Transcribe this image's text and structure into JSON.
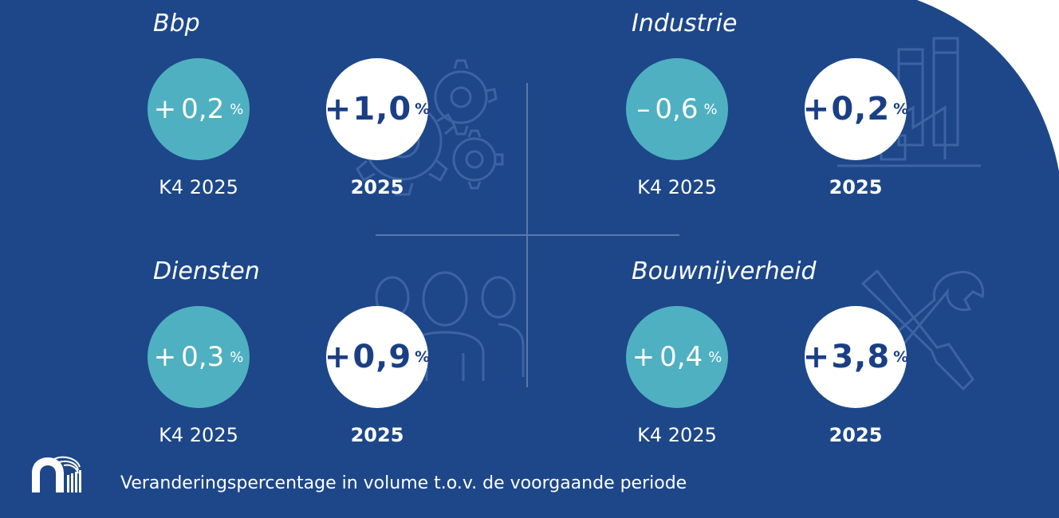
{
  "colors": {
    "background": "#1d4789",
    "accent_teal": "#4fb0c1",
    "value_navy": "#1b3f84",
    "line": "#5a78aa"
  },
  "panels": [
    {
      "title": "Bbp",
      "quarter": {
        "sign": "+",
        "value": "0,2",
        "unit": "%",
        "label": "K4 2025"
      },
      "year": {
        "sign": "+",
        "value": "1,0",
        "unit": "%",
        "label": "2025"
      },
      "icon": "gears-icon"
    },
    {
      "title": "Industrie",
      "quarter": {
        "sign": "–",
        "value": "0,6",
        "unit": "%",
        "label": "K4 2025"
      },
      "year": {
        "sign": "+",
        "value": "0,2",
        "unit": "%",
        "label": "2025"
      },
      "icon": "factory-icon"
    },
    {
      "title": "Diensten",
      "quarter": {
        "sign": "+",
        "value": "0,3",
        "unit": "%",
        "label": "K4 2025"
      },
      "year": {
        "sign": "+",
        "value": "0,9",
        "unit": "%",
        "label": "2025"
      },
      "icon": "people-icon"
    },
    {
      "title": "Bouwnijverheid",
      "quarter": {
        "sign": "+",
        "value": "0,4",
        "unit": "%",
        "label": "K4 2025"
      },
      "year": {
        "sign": "+",
        "value": "3,8",
        "unit": "%",
        "label": "2025"
      },
      "icon": "tools-icon"
    }
  ],
  "footer": {
    "caption": "Veranderingspercentage in volume t.o.v. de voorgaande periode",
    "logo_icon": "nbb-logo-icon"
  }
}
